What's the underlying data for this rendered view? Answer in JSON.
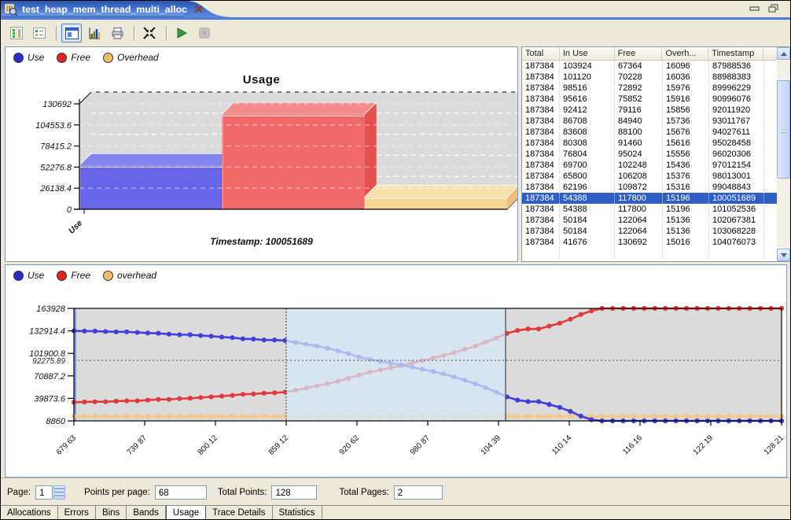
{
  "window": {
    "tab_title": "test_heap_mem_thread_multi_alloc"
  },
  "toolbar": {
    "icons": [
      "allocation-columns-icon",
      "list-view-icon",
      "overview-chart-icon",
      "bar-chart-icon",
      "print-icon",
      "fit-to-window-icon",
      "run-icon",
      "stop-icon"
    ]
  },
  "colors": {
    "selection_blue": "#2E5EC6",
    "tab_gradient_blue": "#4272CE",
    "panel_border": "#7E9DB9",
    "plot_background": "#DBDBDB",
    "selection_band": "#D5E9F8"
  },
  "usage_chart": {
    "title": "Usage",
    "legend": [
      "Use",
      "Free",
      "Overhead"
    ],
    "legend_colors": [
      "#2A2ACF",
      "#E82222",
      "#EFBE6A"
    ],
    "footer": "Timestamp: 100051689",
    "chart_data": {
      "type": "bar",
      "categories": [
        "Use",
        "Free",
        "Overhead"
      ],
      "values": [
        54388,
        117800,
        15196
      ],
      "bar_colors": [
        "#6865E6",
        "#F06A6A",
        "#F5D494"
      ],
      "bar_colors_top": [
        "#8583EC",
        "#F48C8C",
        "#F8E0AC"
      ],
      "bar_colors_side": [
        "#4B38C4",
        "#E64F4F",
        "#E9BE7E"
      ],
      "ytick_labels": [
        "130692",
        "104553.6",
        "78415.2",
        "52276.8",
        "26138.4",
        "0"
      ],
      "ymax": 130692,
      "x_axis_visible_label": "Use"
    }
  },
  "table": {
    "columns": [
      "Total",
      "In Use",
      "Free",
      "Overh...",
      "Timestamp"
    ],
    "selected_row_index": 12,
    "rows": [
      [
        "187384",
        "103924",
        "67364",
        "16096",
        "87988536"
      ],
      [
        "187384",
        "101120",
        "70228",
        "16036",
        "88988383"
      ],
      [
        "187384",
        "98516",
        "72892",
        "15976",
        "89996229"
      ],
      [
        "187384",
        "95616",
        "75852",
        "15916",
        "90996076"
      ],
      [
        "187384",
        "92412",
        "79116",
        "15856",
        "92011920"
      ],
      [
        "187384",
        "86708",
        "84940",
        "15736",
        "93011767"
      ],
      [
        "187384",
        "83608",
        "88100",
        "15676",
        "94027611"
      ],
      [
        "187384",
        "80308",
        "91460",
        "15616",
        "95028458"
      ],
      [
        "187384",
        "76804",
        "95024",
        "15556",
        "96020306"
      ],
      [
        "187384",
        "69700",
        "102248",
        "15436",
        "97012154"
      ],
      [
        "187384",
        "65800",
        "106208",
        "15376",
        "98013001"
      ],
      [
        "187384",
        "62196",
        "109872",
        "15316",
        "99048843"
      ],
      [
        "187384",
        "54388",
        "117800",
        "15196",
        "100051689"
      ],
      [
        "187384",
        "54388",
        "117800",
        "15196",
        "101052536"
      ],
      [
        "187384",
        "50184",
        "122064",
        "15136",
        "102067381"
      ],
      [
        "187384",
        "50184",
        "122064",
        "15136",
        "103068228"
      ],
      [
        "187384",
        "41676",
        "130692",
        "15016",
        "104076073"
      ]
    ]
  },
  "trend_chart": {
    "legend": [
      "Use",
      "Free",
      "overhead"
    ],
    "legend_colors": [
      "#2A2ACF",
      "#E82222",
      "#EFBE6A"
    ],
    "chart_data": {
      "type": "line",
      "ytick_labels": [
        "163928",
        "132914.4",
        "101900.8",
        "70887.2",
        "39873.6",
        "8860"
      ],
      "ymin": 8860,
      "ymax": 163928,
      "ref_line": {
        "label": "92275.89",
        "value": 92275.89
      },
      "xtick_labels": [
        "679 63",
        "739 87",
        "800 12",
        "859 12",
        "920 62",
        "980 87",
        "104 39",
        "110 14",
        "116 16",
        "122 19",
        "128 21"
      ],
      "selection": {
        "start_frac": 0.3,
        "end_frac": 0.61
      },
      "series": [
        {
          "name": "Use",
          "color": "#4040D8",
          "values": [
            133000,
            132600,
            132600,
            132000,
            131600,
            131600,
            130800,
            130000,
            129600,
            128400,
            127600,
            127600,
            126400,
            125600,
            124400,
            123600,
            122000,
            121600,
            120400,
            120400,
            119600,
            117000,
            114500,
            112000,
            109000,
            105500,
            101500,
            97000,
            93500,
            91000,
            88500,
            86000,
            83000,
            80000,
            77000,
            73500,
            69500,
            65000,
            60000,
            54500,
            48500,
            42000,
            37500,
            35500,
            35500,
            31500,
            27500,
            22000,
            15500,
            10500,
            8860,
            8860,
            8860,
            8860,
            8860,
            8860,
            8860,
            8860,
            8860,
            8860,
            8860,
            8860,
            8860,
            8860,
            8860,
            8860,
            8860,
            8860
          ]
        },
        {
          "name": "Free",
          "color": "#E03A3A",
          "values": [
            34500,
            35000,
            35200,
            35200,
            36000,
            36500,
            36500,
            37500,
            38500,
            38500,
            39500,
            40000,
            41000,
            42000,
            43000,
            44000,
            45500,
            46000,
            47000,
            47500,
            48500,
            51000,
            54000,
            57000,
            60000,
            63500,
            67500,
            72000,
            76000,
            79000,
            82000,
            85000,
            88500,
            92000,
            95500,
            99000,
            103000,
            107500,
            112000,
            117500,
            123000,
            129500,
            133500,
            135500,
            135500,
            139500,
            143500,
            149000,
            155500,
            160500,
            163928,
            163928,
            163928,
            163928,
            163928,
            163928,
            163928,
            163928,
            163928,
            163928,
            163928,
            163928,
            163928,
            163928,
            163928,
            163928,
            163928,
            163928
          ]
        },
        {
          "name": "overhead",
          "color": "#F2C782",
          "values": [
            15200,
            15200,
            15200,
            15200,
            15200,
            15200,
            15200,
            15200,
            15200,
            15200,
            15200,
            15200,
            15200,
            15200,
            15200,
            15200,
            15200,
            15200,
            15200,
            15200,
            15200,
            15200,
            15200,
            15200,
            15200,
            15200,
            15200,
            15200,
            15200,
            15200,
            15200,
            15200,
            15200,
            15200,
            15200,
            15200,
            15200,
            15200,
            15200,
            15200,
            15200,
            15200,
            15200,
            15200,
            15200,
            15200,
            15200,
            15200,
            15200,
            15200,
            15200,
            15200,
            15200,
            15200,
            15200,
            15200,
            15200,
            15200,
            15200,
            15200,
            15200,
            15200,
            15200,
            15200,
            15200,
            15200,
            15200,
            15200
          ]
        }
      ]
    }
  },
  "pager": {
    "page_label": "Page:",
    "page": "1",
    "points_per_page_label": "Points per page:",
    "points_per_page": "68",
    "total_points_label": "Total Points:",
    "total_points": "128",
    "total_pages_label": "Total Pages:",
    "total_pages": "2"
  },
  "bottom_tabs": {
    "items": [
      "Allocations",
      "Errors",
      "Bins",
      "Bands",
      "Usage",
      "Trace Details",
      "Statistics"
    ],
    "active": "Usage"
  }
}
